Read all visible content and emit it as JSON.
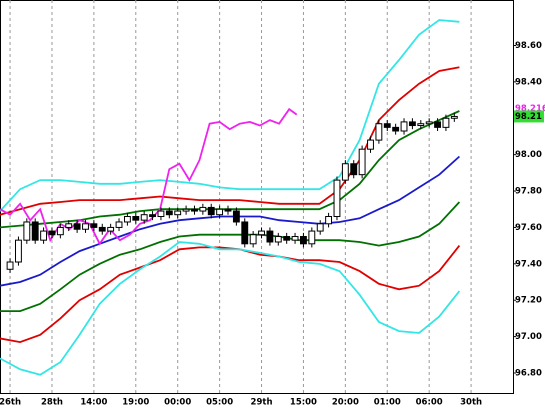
{
  "chart_data": {
    "type": "candlestick",
    "xlim": [
      -1.2,
      60
    ],
    "ylim": [
      96.69,
      98.85
    ],
    "grid": "x",
    "xticks": [
      {
        "value": 0,
        "label": "26th"
      },
      {
        "value": 5,
        "label": "28th"
      },
      {
        "value": 10,
        "label": "14:00"
      },
      {
        "value": 15,
        "label": "19:00"
      },
      {
        "value": 20,
        "label": "00:00"
      },
      {
        "value": 25,
        "label": "05:00"
      },
      {
        "value": 30,
        "label": "29th"
      },
      {
        "value": 35,
        "label": "15:00"
      },
      {
        "value": 40,
        "label": "20:00"
      },
      {
        "value": 45,
        "label": "01:00"
      },
      {
        "value": 50,
        "label": "06:00"
      },
      {
        "value": 55,
        "label": "30th"
      }
    ],
    "yticks": [
      {
        "value": 96.8,
        "label": "96.80"
      },
      {
        "value": 97,
        "label": "97.00"
      },
      {
        "value": 97.2,
        "label": "97.20"
      },
      {
        "value": 97.4,
        "label": "97.40"
      },
      {
        "value": 97.6,
        "label": "97.60"
      },
      {
        "value": 97.8,
        "label": "97.80"
      },
      {
        "value": 98,
        "label": "98.00"
      },
      {
        "value": 98.2,
        "label": "98.20"
      },
      {
        "value": 98.4,
        "label": "98.40"
      },
      {
        "value": 98.6,
        "label": "98.60"
      }
    ],
    "last_price": 98.21,
    "marker_price": 98.216,
    "candles": {
      "x": [
        0,
        1,
        2,
        3,
        4,
        5,
        6,
        7,
        8,
        9,
        10,
        11,
        12,
        13,
        14,
        15,
        16,
        17,
        18,
        19,
        20,
        21,
        22,
        23,
        24,
        25,
        26,
        27,
        28,
        29,
        30,
        31,
        32,
        33,
        34,
        35,
        36,
        37,
        38,
        39,
        40,
        41,
        42,
        43,
        44,
        45,
        46,
        47,
        48,
        49,
        50,
        51,
        52,
        53
      ],
      "open": [
        97.37,
        97.41,
        97.53,
        97.63,
        97.53,
        97.58,
        97.56,
        97.6,
        97.62,
        97.59,
        97.62,
        97.6,
        97.58,
        97.6,
        97.63,
        97.66,
        97.64,
        97.67,
        97.66,
        97.69,
        97.67,
        97.69,
        97.7,
        97.69,
        97.71,
        97.67,
        97.7,
        97.69,
        97.63,
        97.51,
        97.56,
        97.58,
        97.52,
        97.55,
        97.53,
        97.55,
        97.51,
        97.58,
        97.62,
        97.66,
        97.86,
        97.95,
        97.89,
        98.03,
        98.08,
        98.17,
        98.15,
        98.13,
        98.18,
        98.16,
        98.17,
        98.18,
        98.15,
        98.2
      ],
      "high": [
        97.43,
        97.55,
        97.65,
        97.65,
        97.6,
        97.6,
        97.62,
        97.64,
        97.64,
        97.64,
        97.64,
        97.62,
        97.62,
        97.65,
        97.68,
        97.68,
        97.69,
        97.69,
        97.71,
        97.71,
        97.71,
        97.72,
        97.72,
        97.73,
        97.73,
        97.72,
        97.72,
        97.71,
        97.65,
        97.58,
        97.6,
        97.6,
        97.57,
        97.57,
        97.57,
        97.57,
        97.6,
        97.64,
        97.68,
        97.88,
        97.97,
        97.97,
        98.05,
        98.1,
        98.19,
        98.19,
        98.17,
        98.2,
        98.2,
        98.19,
        98.2,
        98.2,
        98.22,
        98.23
      ],
      "low": [
        97.35,
        97.39,
        97.51,
        97.51,
        97.51,
        97.54,
        97.54,
        97.58,
        97.57,
        97.57,
        97.58,
        97.56,
        97.56,
        97.58,
        97.61,
        97.62,
        97.62,
        97.64,
        97.64,
        97.65,
        97.65,
        97.67,
        97.67,
        97.67,
        97.65,
        97.65,
        97.67,
        97.61,
        97.49,
        97.49,
        97.54,
        97.5,
        97.5,
        97.51,
        97.51,
        97.49,
        97.49,
        97.56,
        97.6,
        97.64,
        97.84,
        97.87,
        97.87,
        98.01,
        98.06,
        98.13,
        98.11,
        98.11,
        98.14,
        98.14,
        98.15,
        98.13,
        98.13,
        98.18
      ],
      "close": [
        97.41,
        97.53,
        97.63,
        97.53,
        97.58,
        97.56,
        97.6,
        97.62,
        97.59,
        97.62,
        97.6,
        97.58,
        97.6,
        97.63,
        97.66,
        97.64,
        97.67,
        97.66,
        97.69,
        97.67,
        97.69,
        97.7,
        97.69,
        97.71,
        97.67,
        97.7,
        97.69,
        97.63,
        97.51,
        97.56,
        97.58,
        97.52,
        97.55,
        97.53,
        97.55,
        97.51,
        97.58,
        97.62,
        97.66,
        97.86,
        97.95,
        97.89,
        98.03,
        98.08,
        98.17,
        98.15,
        98.13,
        98.18,
        98.16,
        98.17,
        98.18,
        98.15,
        98.2,
        98.21
      ]
    },
    "series": [
      {
        "color": "#33e6e6",
        "x": [
          -1.2,
          1.2,
          3.6,
          6,
          8.3,
          10.7,
          13.1,
          15.5,
          17.9,
          20.2,
          22.6,
          25,
          27.4,
          29.8,
          32.1,
          34.5,
          36.9,
          39.3,
          41.7,
          44,
          46.4,
          48.8,
          51.2,
          53.6
        ],
        "values": [
          97.69,
          97.81,
          97.86,
          97.86,
          97.85,
          97.84,
          97.84,
          97.85,
          97.86,
          97.85,
          97.84,
          97.82,
          97.81,
          97.81,
          97.81,
          97.81,
          97.81,
          97.88,
          98.08,
          98.39,
          98.52,
          98.66,
          98.74,
          98.73
        ]
      },
      {
        "color": "#e00000",
        "x": [
          -1.2,
          1.2,
          3.6,
          6,
          8.3,
          10.7,
          13.1,
          15.5,
          17.9,
          20.2,
          22.6,
          25,
          27.4,
          29.8,
          32.1,
          34.5,
          36.9,
          39.3,
          41.7,
          44,
          46.4,
          48.8,
          51.2,
          53.6
        ],
        "values": [
          97.67,
          97.7,
          97.73,
          97.74,
          97.75,
          97.75,
          97.75,
          97.76,
          97.77,
          97.76,
          97.75,
          97.75,
          97.75,
          97.74,
          97.73,
          97.73,
          97.73,
          97.81,
          97.97,
          98.19,
          98.3,
          98.39,
          98.46,
          98.48
        ]
      },
      {
        "color": "#007000",
        "x": [
          -1.2,
          1.2,
          3.6,
          6,
          8.3,
          10.7,
          13.1,
          15.5,
          17.9,
          20.2,
          22.6,
          25,
          27.4,
          29.8,
          32.1,
          34.5,
          36.9,
          39.3,
          41.7,
          44,
          46.4,
          48.8,
          51.2,
          53.6
        ],
        "values": [
          97.6,
          97.61,
          97.62,
          97.63,
          97.64,
          97.66,
          97.67,
          97.69,
          97.7,
          97.7,
          97.7,
          97.7,
          97.7,
          97.7,
          97.7,
          97.7,
          97.7,
          97.75,
          97.84,
          97.97,
          98.08,
          98.14,
          98.19,
          98.24
        ]
      },
      {
        "color": "#1a1acc",
        "x": [
          -1.2,
          1.2,
          3.6,
          6,
          8.3,
          10.7,
          13.1,
          15.5,
          17.9,
          20.2,
          22.6,
          25,
          27.4,
          29.8,
          32.1,
          34.5,
          36.9,
          39.3,
          41.7,
          44,
          46.4,
          48.8,
          51.2,
          53.6
        ],
        "values": [
          97.28,
          97.3,
          97.34,
          97.41,
          97.47,
          97.51,
          97.55,
          97.59,
          97.62,
          97.64,
          97.65,
          97.66,
          97.66,
          97.66,
          97.64,
          97.63,
          97.62,
          97.63,
          97.65,
          97.7,
          97.75,
          97.82,
          97.89,
          97.99
        ]
      },
      {
        "color": "#007000",
        "x": [
          -1.2,
          1.2,
          3.6,
          6,
          8.3,
          10.7,
          13.1,
          15.5,
          17.9,
          20.2,
          22.6,
          25,
          27.4,
          29.8,
          32.1,
          34.5,
          36.9,
          39.3,
          41.7,
          44,
          46.4,
          48.8,
          51.2,
          53.6
        ],
        "values": [
          97.14,
          97.14,
          97.18,
          97.26,
          97.34,
          97.4,
          97.45,
          97.48,
          97.52,
          97.55,
          97.56,
          97.56,
          97.56,
          97.56,
          97.55,
          97.53,
          97.53,
          97.53,
          97.52,
          97.5,
          97.52,
          97.55,
          97.62,
          97.74
        ]
      },
      {
        "color": "#e00000",
        "x": [
          -1.2,
          1.2,
          3.6,
          6,
          8.3,
          10.7,
          13.1,
          15.5,
          17.9,
          20.2,
          22.6,
          25,
          27.4,
          29.8,
          32.1,
          34.5,
          36.9,
          39.3,
          41.7,
          44,
          46.4,
          48.8,
          51.2,
          53.6
        ],
        "values": [
          96.99,
          96.97,
          97.01,
          97.1,
          97.2,
          97.26,
          97.34,
          97.38,
          97.42,
          97.48,
          97.49,
          97.49,
          97.48,
          97.45,
          97.44,
          97.42,
          97.42,
          97.41,
          97.36,
          97.29,
          97.26,
          97.28,
          97.36,
          97.5
        ]
      },
      {
        "color": "#33e6e6",
        "x": [
          -1.2,
          1.2,
          3.6,
          6,
          8.3,
          10.7,
          13.1,
          15.5,
          17.9,
          20.2,
          22.6,
          25,
          27.4,
          29.8,
          32.1,
          34.5,
          36.9,
          39.3,
          41.7,
          44,
          46.4,
          48.8,
          51.2,
          53.6
        ],
        "values": [
          96.88,
          96.82,
          96.79,
          96.86,
          97.01,
          97.18,
          97.29,
          97.37,
          97.44,
          97.52,
          97.51,
          97.48,
          97.48,
          97.46,
          97.44,
          97.41,
          97.4,
          97.36,
          97.23,
          97.08,
          97.03,
          97.02,
          97.11,
          97.25
        ]
      },
      {
        "color": "#ee22ee",
        "x": [
          -1.2,
          0,
          1.2,
          2.4,
          3.6,
          4.8,
          6,
          7.1,
          8.3,
          9.5,
          10.7,
          11.9,
          13.1,
          14.3,
          15.5,
          16.7,
          17.9,
          19,
          20.2,
          21.4,
          22.6,
          23.8,
          25,
          26.2,
          27.4,
          28.6,
          29.8,
          31,
          32.1,
          33.3,
          34.2
        ],
        "values": [
          97.7,
          97.67,
          97.73,
          97.64,
          97.7,
          97.53,
          97.62,
          97.59,
          97.64,
          97.62,
          97.51,
          97.59,
          97.53,
          97.56,
          97.62,
          97.64,
          97.7,
          97.92,
          97.95,
          97.86,
          97.97,
          98.17,
          98.18,
          98.14,
          98.17,
          98.18,
          98.16,
          98.19,
          98.17,
          98.25,
          98.22
        ]
      }
    ]
  }
}
